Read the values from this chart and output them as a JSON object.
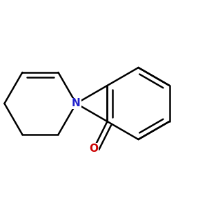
{
  "background_color": "#ffffff",
  "bond_color": "#000000",
  "N_color": "#2222cc",
  "O_color": "#cc0000",
  "bond_width": 1.8,
  "font_size_atom": 11,
  "fig_size": [
    3.0,
    3.0
  ],
  "dpi": 100,
  "xlim": [
    0.0,
    1.0
  ],
  "ylim": [
    0.1,
    0.9
  ]
}
